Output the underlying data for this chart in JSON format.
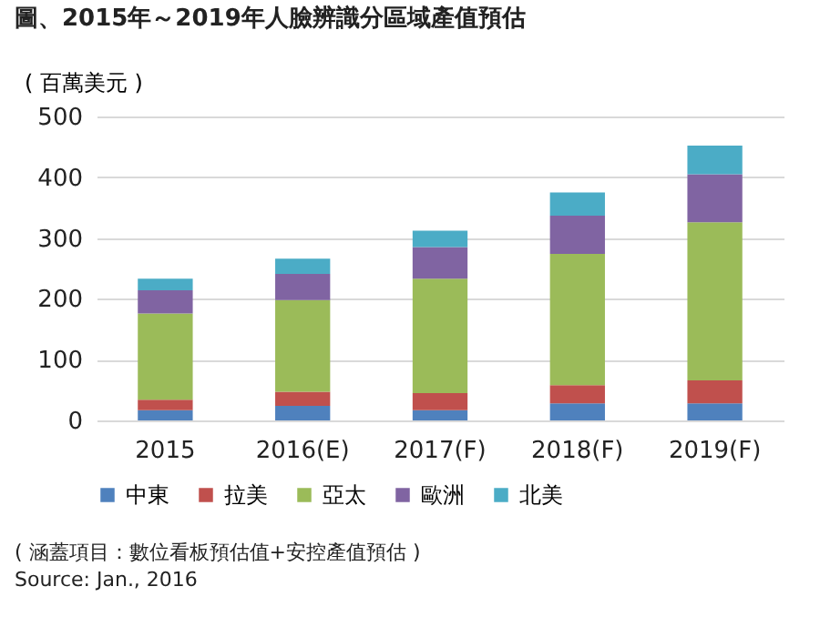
{
  "chart_data": {
    "type": "bar",
    "title": "圖、2015年～2019年人臉辨識分區域產值預估",
    "ylabel": "( 百萬美元 )",
    "categories": [
      "2015",
      "2016(E)",
      "2017(F)",
      "2018(F)",
      "2019(F)"
    ],
    "series": [
      {
        "name": "中東",
        "color": "#4f81bd",
        "values": [
          17,
          24,
          17,
          28,
          28
        ]
      },
      {
        "name": "拉美",
        "color": "#c0504d",
        "values": [
          17,
          23,
          28,
          30,
          38
        ]
      },
      {
        "name": "亞太",
        "color": "#9bbb59",
        "values": [
          142,
          151,
          188,
          216,
          260
        ]
      },
      {
        "name": "歐洲",
        "color": "#8064a2",
        "values": [
          38,
          43,
          52,
          63,
          79
        ]
      },
      {
        "name": "北美",
        "color": "#4bacc6",
        "values": [
          19,
          25,
          27,
          38,
          47
        ]
      }
    ],
    "stacked": true,
    "ylim": [
      0,
      500
    ],
    "yticks": [
      0,
      100,
      200,
      300,
      400,
      500
    ],
    "grid": "y",
    "legend": "bottom",
    "annotations": [
      "( 涵蓋項目：數位看板預估值+安控產值預估 )",
      "Source: Jan., 2016"
    ]
  }
}
